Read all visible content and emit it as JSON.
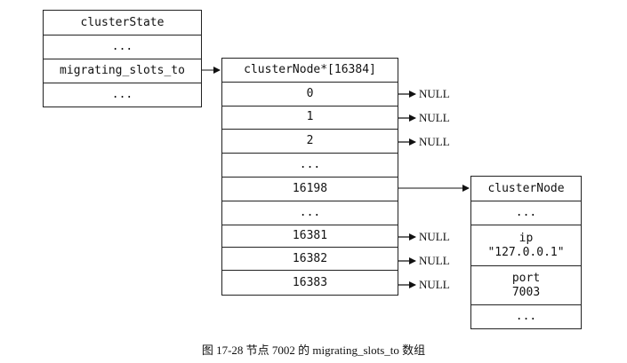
{
  "cluster_state": {
    "title": "clusterState",
    "cells": [
      "...",
      "migrating_slots_to",
      "..."
    ]
  },
  "slot_array": {
    "title": "clusterNode*[16384]",
    "cells": [
      "0",
      "1",
      "2",
      "...",
      "16198",
      "...",
      "16381",
      "16382",
      "16383"
    ]
  },
  "null_labels": [
    "NULL",
    "NULL",
    "NULL",
    "NULL",
    "NULL",
    "NULL"
  ],
  "cluster_node": {
    "title": "clusterNode",
    "cells": [
      "...",
      "ip",
      "\"127.0.0.1\"",
      "port",
      "7003",
      "..."
    ]
  },
  "caption": "图 17-28   节点 7002 的 migrating_slots_to 数组"
}
